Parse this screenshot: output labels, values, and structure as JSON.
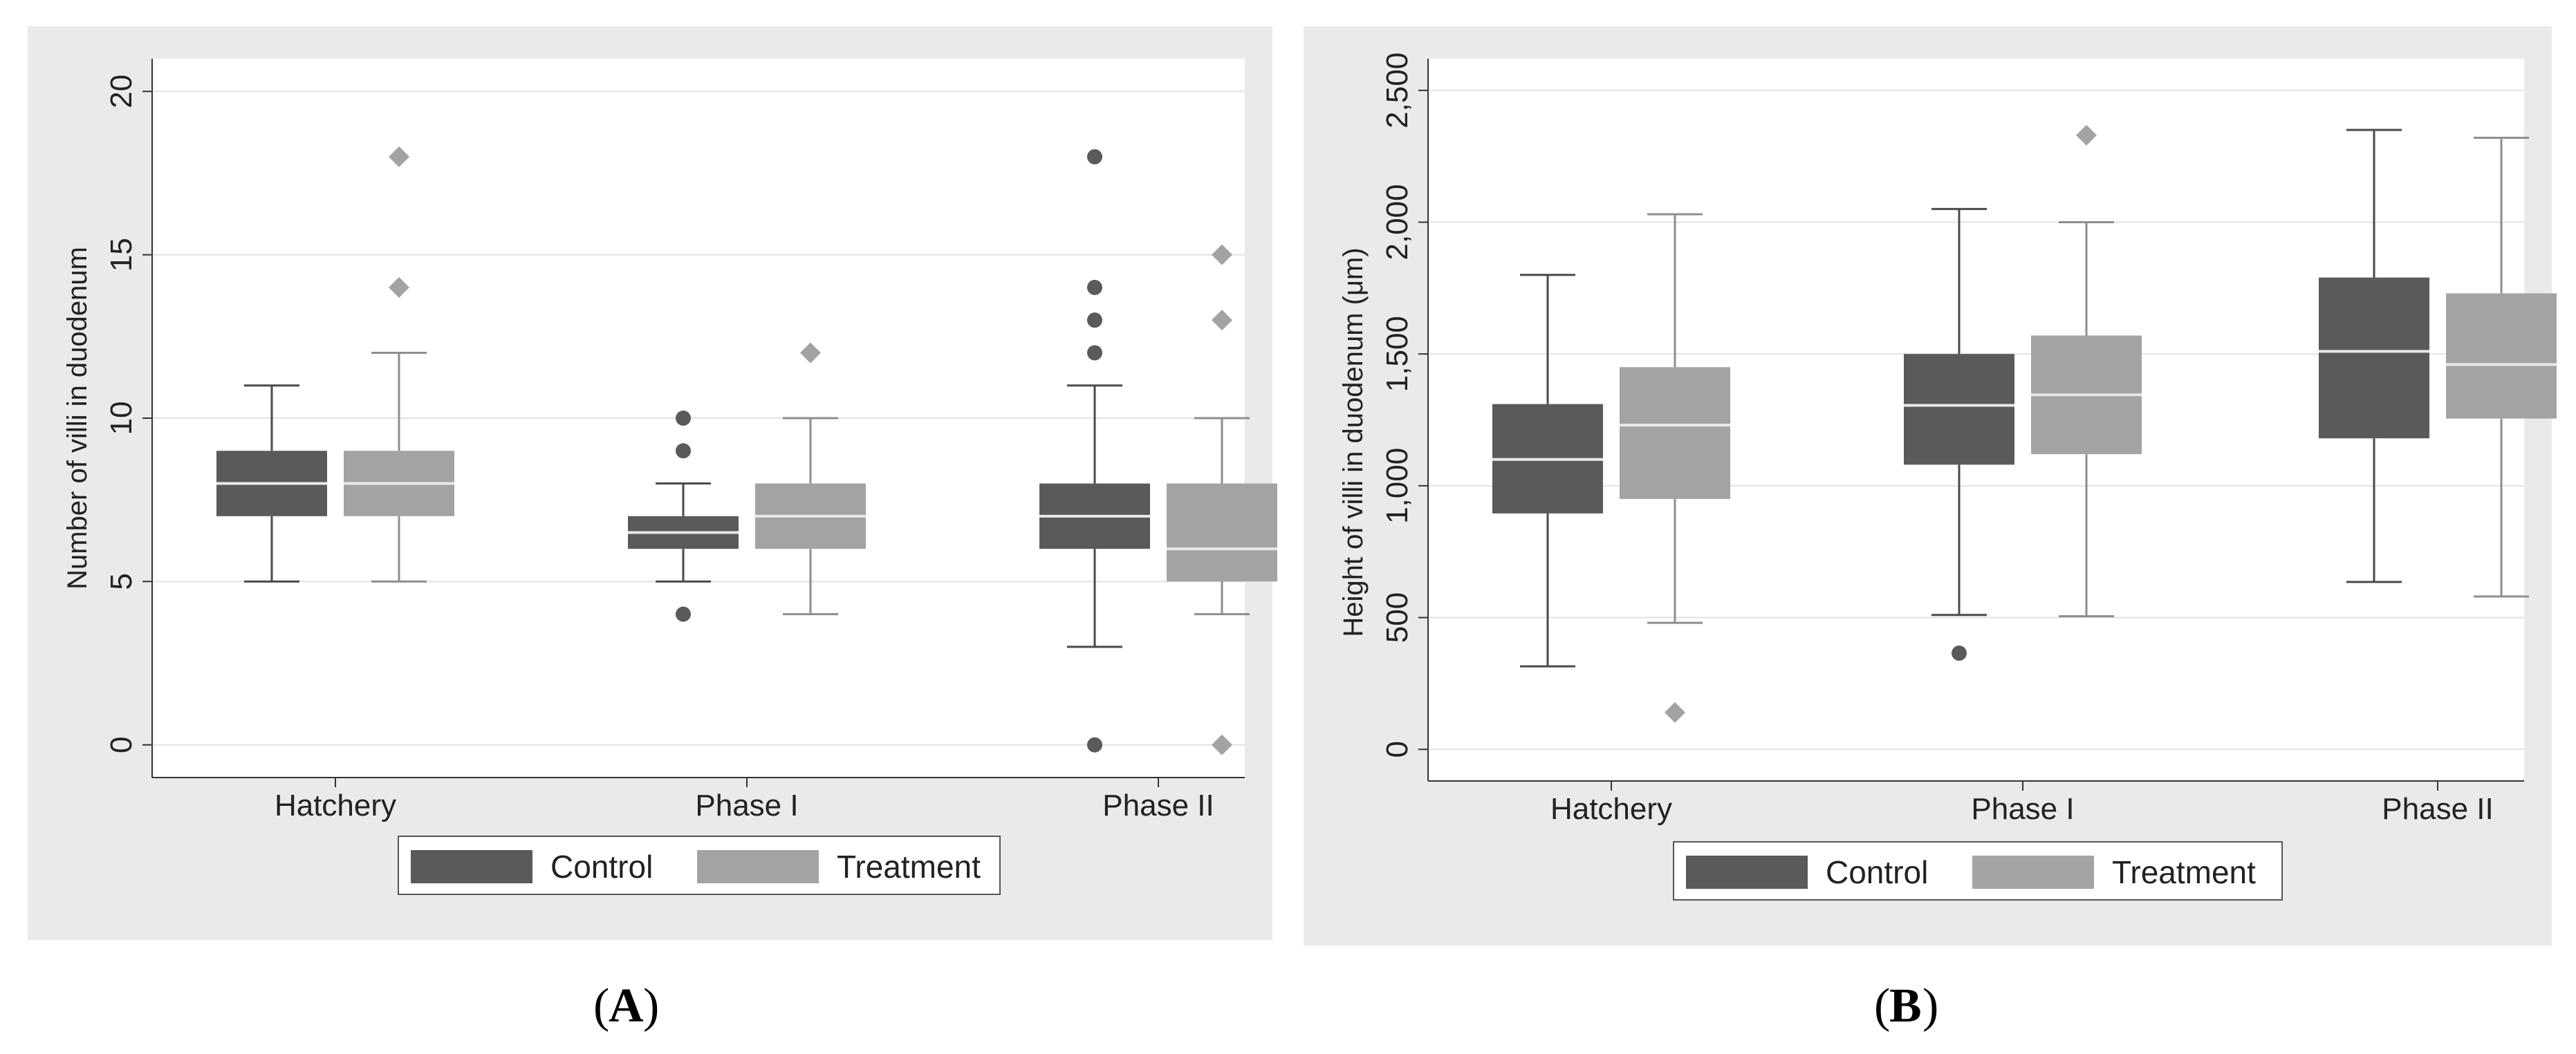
{
  "chart_data": [
    {
      "type": "box",
      "panel_label": "A",
      "title": "",
      "xlabel": "",
      "ylabel": "Number of villi in duodenum",
      "categories": [
        "Hatchery",
        "Phase I",
        "Phase II"
      ],
      "ylim": [
        -1,
        21
      ],
      "yticks": [
        0,
        5,
        10,
        15,
        20
      ],
      "ytick_labels": [
        "0",
        "5",
        "10",
        "15",
        "20"
      ],
      "legend": [
        "Control",
        "Treatment"
      ],
      "legend_position": "bottom-center",
      "series": [
        {
          "name": "Control",
          "color": "#5a5a5a",
          "boxes": [
            {
              "category": "Hatchery",
              "whisker_low": 5,
              "q1": 7,
              "median": 8,
              "q3": 9,
              "whisker_high": 11,
              "outliers": []
            },
            {
              "category": "Phase I",
              "whisker_low": 5,
              "q1": 6,
              "median": 6.5,
              "q3": 7,
              "whisker_high": 8,
              "outliers": [
                4,
                9,
                10
              ]
            },
            {
              "category": "Phase II",
              "whisker_low": 3,
              "q1": 6,
              "median": 7,
              "q3": 8,
              "whisker_high": 11,
              "outliers": [
                0,
                12,
                13,
                14,
                18
              ]
            }
          ]
        },
        {
          "name": "Treatment",
          "color": "#a3a3a3",
          "boxes": [
            {
              "category": "Hatchery",
              "whisker_low": 5,
              "q1": 7,
              "median": 8,
              "q3": 9,
              "whisker_high": 12,
              "outliers": [
                14,
                18
              ]
            },
            {
              "category": "Phase I",
              "whisker_low": 4,
              "q1": 6,
              "median": 7,
              "q3": 8,
              "whisker_high": 10,
              "outliers": [
                12
              ]
            },
            {
              "category": "Phase II",
              "whisker_low": 4,
              "q1": 5,
              "median": 6,
              "q3": 8,
              "whisker_high": 10,
              "outliers": [
                0,
                13,
                15
              ]
            }
          ]
        }
      ]
    },
    {
      "type": "box",
      "panel_label": "B",
      "title": "",
      "xlabel": "",
      "ylabel": "Height of villi in duodenum (μm)",
      "categories": [
        "Hatchery",
        "Phase I",
        "Phase II"
      ],
      "ylim": [
        -120,
        2620
      ],
      "yticks": [
        0,
        500,
        1000,
        1500,
        2000,
        2500
      ],
      "ytick_labels": [
        "0",
        "500",
        "1,000",
        "1,500",
        "2,000",
        "2,500"
      ],
      "legend": [
        "Control",
        "Treatment"
      ],
      "legend_position": "bottom-center",
      "series": [
        {
          "name": "Control",
          "color": "#5a5a5a",
          "boxes": [
            {
              "category": "Hatchery",
              "whisker_low": 315,
              "q1": 895,
              "median": 1100,
              "q3": 1310,
              "whisker_high": 1800,
              "outliers": []
            },
            {
              "category": "Phase I",
              "whisker_low": 510,
              "q1": 1080,
              "median": 1305,
              "q3": 1500,
              "whisker_high": 2050,
              "outliers": [
                365
              ]
            },
            {
              "category": "Phase II",
              "whisker_low": 635,
              "q1": 1180,
              "median": 1510,
              "q3": 1790,
              "whisker_high": 2350,
              "outliers": []
            }
          ]
        },
        {
          "name": "Treatment",
          "color": "#a3a3a3",
          "boxes": [
            {
              "category": "Hatchery",
              "whisker_low": 480,
              "q1": 950,
              "median": 1230,
              "q3": 1450,
              "whisker_high": 2030,
              "outliers": [
                140
              ]
            },
            {
              "category": "Phase I",
              "whisker_low": 505,
              "q1": 1120,
              "median": 1345,
              "q3": 1570,
              "whisker_high": 2000,
              "outliers": [
                2330
              ]
            },
            {
              "category": "Phase II",
              "whisker_low": 580,
              "q1": 1255,
              "median": 1460,
              "q3": 1730,
              "whisker_high": 2320,
              "outliers": []
            }
          ]
        }
      ]
    }
  ],
  "captions": [
    "A",
    "B"
  ],
  "colors": {
    "panel_bg": "#eaeaea",
    "plot_bg": "#ffffff",
    "grid": "#e2e2e2",
    "axis": "#333333",
    "whisker_control": "#4a4a4a",
    "whisker_treatment": "#8e8e8e",
    "median_line": "#e8e8e8"
  }
}
